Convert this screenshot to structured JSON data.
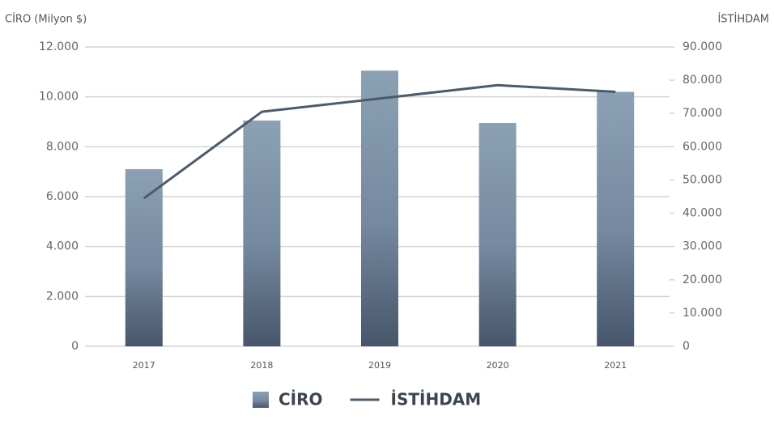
{
  "chart_data": {
    "type": "bar_line",
    "y_axis_label": "CİRO (Milyon $)",
    "y2_axis_label": "İSTİHDAM",
    "categories": [
      "2017",
      "2018",
      "2019",
      "2020",
      "2021"
    ],
    "series": [
      {
        "name": "CİRO",
        "type": "bar",
        "color": "#8ba1b3",
        "values": [
          7100,
          9050,
          11050,
          8950,
          10200
        ]
      },
      {
        "name": "İSTİHDAM",
        "type": "line",
        "axis": "y2",
        "color": "#4b5b6c",
        "values": [
          44500,
          70500,
          74500,
          78500,
          76500
        ]
      }
    ],
    "ylim": [
      0,
      12000
    ],
    "yticks": [
      0,
      {
        "value": 2000,
        "label": "2.000"
      },
      {
        "value": 4000,
        "label": "4.000"
      },
      {
        "value": 6000,
        "label": "6.000"
      },
      {
        "value": 8000,
        "label": "8.000"
      },
      {
        "value": 10000,
        "label": "10.000"
      },
      {
        "value": 12000,
        "label": "12.000"
      }
    ],
    "y2lim": [
      0,
      90000
    ],
    "y2ticks": [
      0,
      {
        "value": 10000,
        "label": "10.000"
      },
      {
        "value": 20000,
        "label": "20.000"
      },
      {
        "value": 30000,
        "label": "30.000"
      },
      {
        "value": 40000,
        "label": "40.000"
      },
      {
        "value": 50000,
        "label": "50.000"
      },
      {
        "value": 60000,
        "label": "60.000"
      },
      {
        "value": 70000,
        "label": "70.000"
      },
      {
        "value": 80000,
        "label": "80.000"
      },
      {
        "value": 90000,
        "label": "90.000"
      }
    ],
    "grid": true,
    "legend": "bottom"
  }
}
